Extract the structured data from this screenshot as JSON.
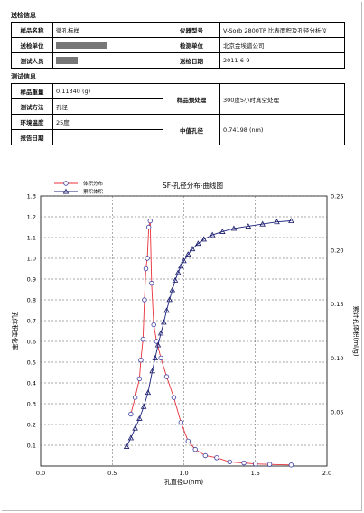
{
  "sample_info": {
    "section_title": "送检信息",
    "sample_name_label": "样品名称",
    "sample_name_value": "微孔标样",
    "instrument_model_label": "仪器型号",
    "instrument_model_value": "V-Sorb 2800TP 比表面积及孔径分析仪",
    "submitter_label": "送检单位",
    "test_unit_label": "检测单位",
    "test_unit_value": "北京金埃谱公司",
    "tester_label": "测试人员",
    "submit_date_label": "送检日期",
    "submit_date_value": "2011-6-9"
  },
  "test_info": {
    "section_title": "测试信息",
    "sample_weight_label": "样品重量",
    "sample_weight_value": "0.11340 (g)",
    "pretreatment_label": "样品预处理",
    "pretreatment_value": "300度5小时真空处理",
    "method_label": "测试方法",
    "method_value": "孔径",
    "temperature_label": "环境温度",
    "temperature_value": "25度",
    "median_pore_label": "中值孔径",
    "median_pore_value": "0.74198 (nm)",
    "report_date_label": "报告日期",
    "report_date_value": ""
  },
  "chart_data": {
    "type": "line",
    "title": "SF-孔径分布-曲线图",
    "xlabel": "孔直径D(nm)",
    "ylabel_left": "孔体积变化率",
    "ylabel_right": "累计孔体积(ml/g)",
    "xlim": [
      0.0,
      2.0
    ],
    "ylim_left": [
      0.0,
      1.3
    ],
    "ylim_right": [
      0.0,
      0.25
    ],
    "x_ticks": [
      "0.0",
      "0.5",
      "1.0",
      "1.5",
      "2.0"
    ],
    "y_left_ticks": [
      "0.1",
      "0.2",
      "0.3",
      "0.4",
      "0.5",
      "0.6",
      "0.7",
      "0.8",
      "0.9",
      "1.0",
      "1.1",
      "1.2",
      "1.3"
    ],
    "y_right_ticks": [
      "0.05",
      "0.10",
      "0.15",
      "0.20",
      "0.25"
    ],
    "legend_position": "top-left",
    "series": [
      {
        "name": "体积分布",
        "axis": "left",
        "color": "#e8303a",
        "marker": "circle",
        "x": [
          0.63,
          0.66,
          0.69,
          0.7,
          0.715,
          0.725,
          0.735,
          0.745,
          0.755,
          0.765,
          0.775,
          0.79,
          0.81,
          0.84,
          0.88,
          0.93,
          0.98,
          1.03,
          1.08,
          1.15,
          1.23,
          1.32,
          1.42,
          1.5,
          1.6,
          1.75
        ],
        "values": [
          0.25,
          0.33,
          0.42,
          0.51,
          0.61,
          0.8,
          0.95,
          1.0,
          1.15,
          1.18,
          0.88,
          0.68,
          0.6,
          0.52,
          0.43,
          0.33,
          0.21,
          0.12,
          0.08,
          0.05,
          0.04,
          0.02,
          0.015,
          0.01,
          0.008,
          0.005
        ]
      },
      {
        "name": "累积体积",
        "axis": "right",
        "color": "#1a237e",
        "marker": "triangle",
        "x": [
          0.6,
          0.63,
          0.66,
          0.69,
          0.72,
          0.75,
          0.78,
          0.8,
          0.82,
          0.84,
          0.86,
          0.88,
          0.9,
          0.92,
          0.94,
          0.96,
          0.98,
          1.0,
          1.03,
          1.06,
          1.1,
          1.14,
          1.2,
          1.27,
          1.35,
          1.45,
          1.55,
          1.65,
          1.75
        ],
        "values": [
          0.018,
          0.026,
          0.035,
          0.044,
          0.055,
          0.068,
          0.088,
          0.1,
          0.112,
          0.123,
          0.133,
          0.144,
          0.154,
          0.163,
          0.172,
          0.179,
          0.185,
          0.19,
          0.196,
          0.201,
          0.206,
          0.21,
          0.214,
          0.217,
          0.22,
          0.222,
          0.224,
          0.226,
          0.227
        ]
      }
    ]
  }
}
